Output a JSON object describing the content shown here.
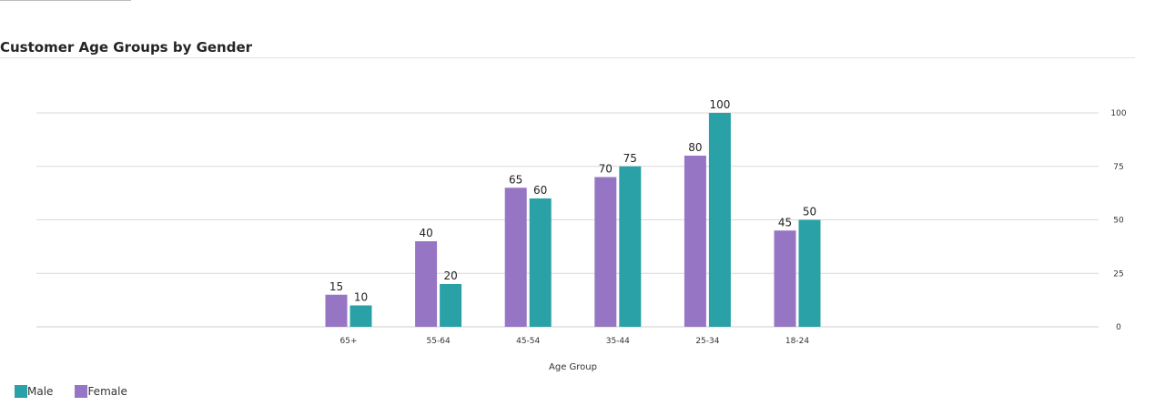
{
  "card": {
    "title": "Customer Age Groups by Gender"
  },
  "chart_data": {
    "type": "bar",
    "title": "Customer Age Groups by Gender",
    "xlabel": "Age Group",
    "ylabel": "",
    "categories": [
      "65+",
      "55-64",
      "45-54",
      "35-44",
      "25-34",
      "18-24"
    ],
    "series": [
      {
        "name": "Female",
        "color": "#9575c4",
        "values": [
          15,
          40,
          65,
          70,
          80,
          45
        ]
      },
      {
        "name": "Male",
        "color": "#2aa1a6",
        "values": [
          10,
          20,
          60,
          75,
          100,
          50
        ]
      }
    ],
    "ylim": [
      0,
      100
    ],
    "yticks": [
      0,
      25,
      50,
      75,
      100
    ],
    "y_axis_side": "right",
    "grid": true,
    "data_labels": true,
    "legend_position": "bottom-left",
    "legend": [
      {
        "label": "Male",
        "color": "#2aa1a6"
      },
      {
        "label": "Female",
        "color": "#9575c4"
      }
    ]
  }
}
